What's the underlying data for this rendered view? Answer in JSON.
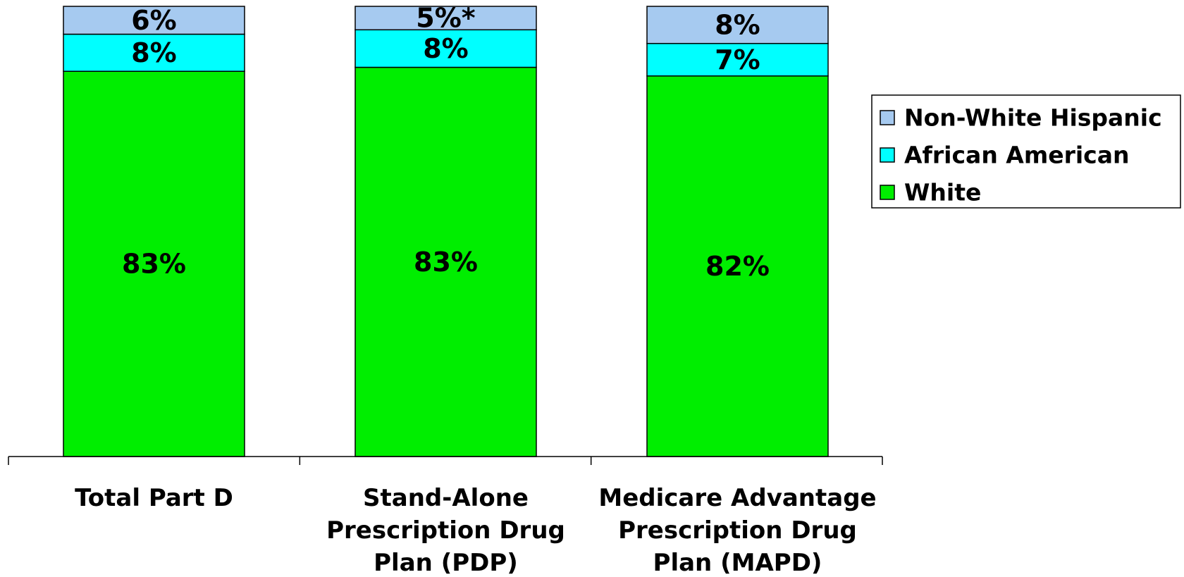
{
  "chart_data": {
    "type": "bar",
    "stacked": true,
    "normalized": true,
    "categories": [
      [
        "Total Part D"
      ],
      [
        "Stand-Alone",
        "Prescription Drug",
        "Plan (PDP)"
      ],
      [
        "Medicare Advantage",
        "Prescription Drug",
        "Plan (MAPD)"
      ]
    ],
    "series": [
      {
        "name": "White",
        "color": "#00ee00",
        "values": [
          83,
          83,
          82
        ],
        "labels": [
          "83%",
          "83%",
          "82%"
        ]
      },
      {
        "name": "African American",
        "color": "#00ffff",
        "values": [
          8,
          8,
          7
        ],
        "labels": [
          "8%",
          "8%",
          "7%"
        ]
      },
      {
        "name": "Non-White Hispanic",
        "color": "#a6caf0",
        "values": [
          6,
          5,
          8
        ],
        "labels": [
          "6%",
          "5%*",
          "8%"
        ]
      }
    ],
    "title": "",
    "xlabel": "",
    "ylabel": "",
    "grid": false,
    "legend": {
      "position": "right",
      "order": [
        "Non-White Hispanic",
        "African American",
        "White"
      ]
    }
  }
}
